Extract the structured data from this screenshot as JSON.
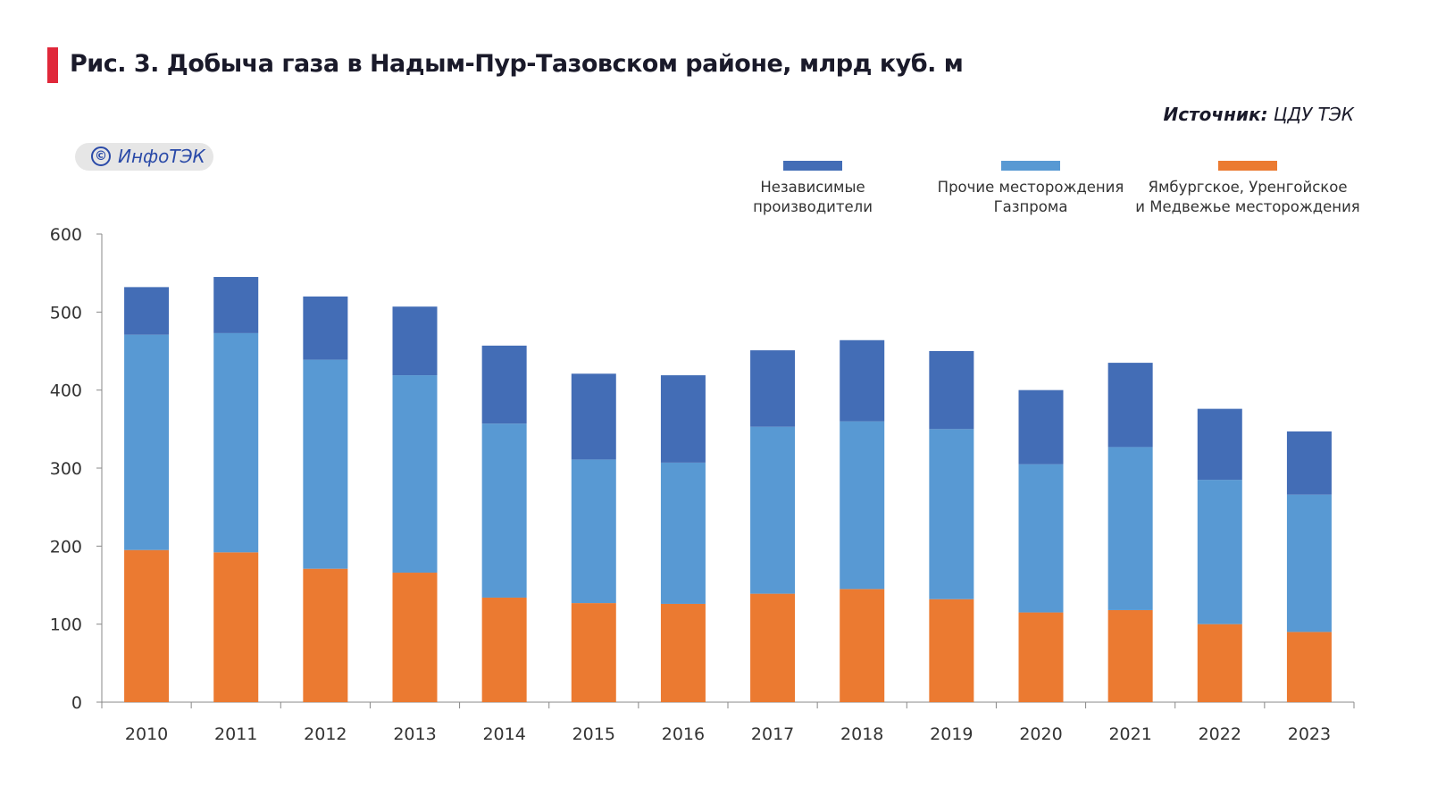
{
  "header": {
    "title": "Рис. 3. Добыча газа в Надым-Пур-Тазовском районе, млрд куб. м",
    "source_label": "Источник:",
    "source_value": "ЦДУ ТЭК",
    "logo_text": "ИнфоТЭК",
    "logo_symbol": "©"
  },
  "chart_data": {
    "type": "bar",
    "stacked": true,
    "title": "Рис. 3. Добыча газа в Надым-Пур-Тазовском районе, млрд куб. м",
    "xlabel": "",
    "ylabel": "млрд куб. м",
    "ylim": [
      0,
      600
    ],
    "yticks": [
      0,
      100,
      200,
      300,
      400,
      500,
      600
    ],
    "grid": false,
    "legend_position": "top-right",
    "categories": [
      "2010",
      "2011",
      "2012",
      "2013",
      "2014",
      "2015",
      "2016",
      "2017",
      "2018",
      "2019",
      "2020",
      "2021",
      "2022",
      "2023"
    ],
    "series": [
      {
        "name": "Ямбургское, Уренгойское и Медвежье месторождения",
        "legend_lines": [
          "Ямбургское, Уренгойское",
          "и Медвежье месторождения"
        ],
        "color": "#eb7a31",
        "values": [
          195,
          192,
          171,
          166,
          134,
          127,
          126,
          139,
          145,
          132,
          115,
          118,
          100,
          90
        ]
      },
      {
        "name": "Прочие месторождения Газпрома",
        "legend_lines": [
          "Прочие месторождения",
          "Газпрома"
        ],
        "color": "#5899d3",
        "values": [
          276,
          281,
          268,
          253,
          223,
          184,
          181,
          214,
          215,
          218,
          190,
          209,
          185,
          176
        ]
      },
      {
        "name": "Независимые производители",
        "legend_lines": [
          "Независимые",
          "производители"
        ],
        "color": "#436db6",
        "values": [
          61,
          72,
          81,
          88,
          100,
          110,
          112,
          98,
          104,
          100,
          95,
          108,
          91,
          81
        ]
      }
    ]
  }
}
